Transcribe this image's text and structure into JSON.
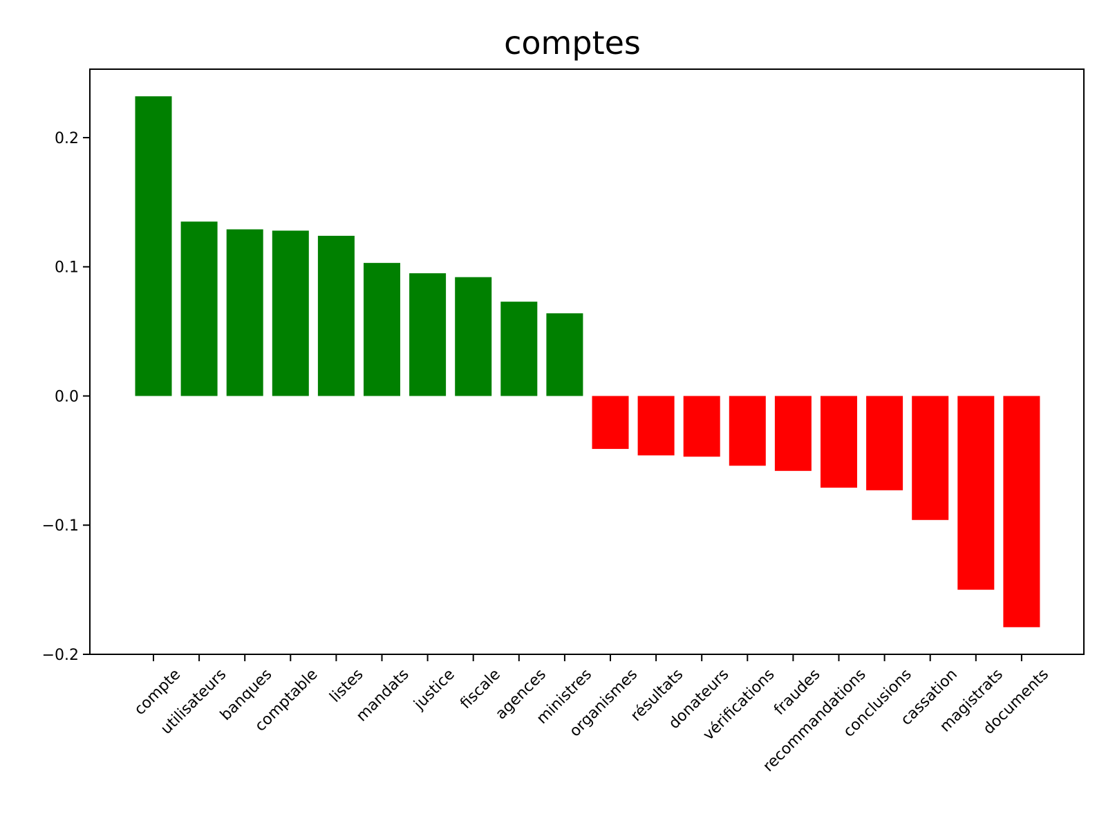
{
  "chart_data": {
    "type": "bar",
    "title": "comptes",
    "xlabel": "",
    "ylabel": "",
    "ylim": [
      -0.2,
      0.253
    ],
    "yticks": [
      -0.2,
      -0.1,
      0.0,
      0.1,
      0.2
    ],
    "ytick_labels": [
      "−0.2",
      "−0.1",
      "0.0",
      "0.1",
      "0.2"
    ],
    "grid": false,
    "legend": "none",
    "colors": {
      "positive": "#008000",
      "negative": "#ff0000"
    },
    "categories": [
      "compte",
      "utilisateurs",
      "banques",
      "comptable",
      "listes",
      "mandats",
      "justice",
      "fiscale",
      "agences",
      "ministres",
      "organismes",
      "résultats",
      "donateurs",
      "vérifications",
      "fraudes",
      "recommandations",
      "conclusions",
      "cassation",
      "magistrats",
      "documents"
    ],
    "values": [
      0.232,
      0.135,
      0.129,
      0.128,
      0.124,
      0.103,
      0.095,
      0.092,
      0.073,
      0.064,
      -0.041,
      -0.046,
      -0.047,
      -0.054,
      -0.058,
      -0.071,
      -0.073,
      -0.096,
      -0.15,
      -0.179
    ]
  }
}
